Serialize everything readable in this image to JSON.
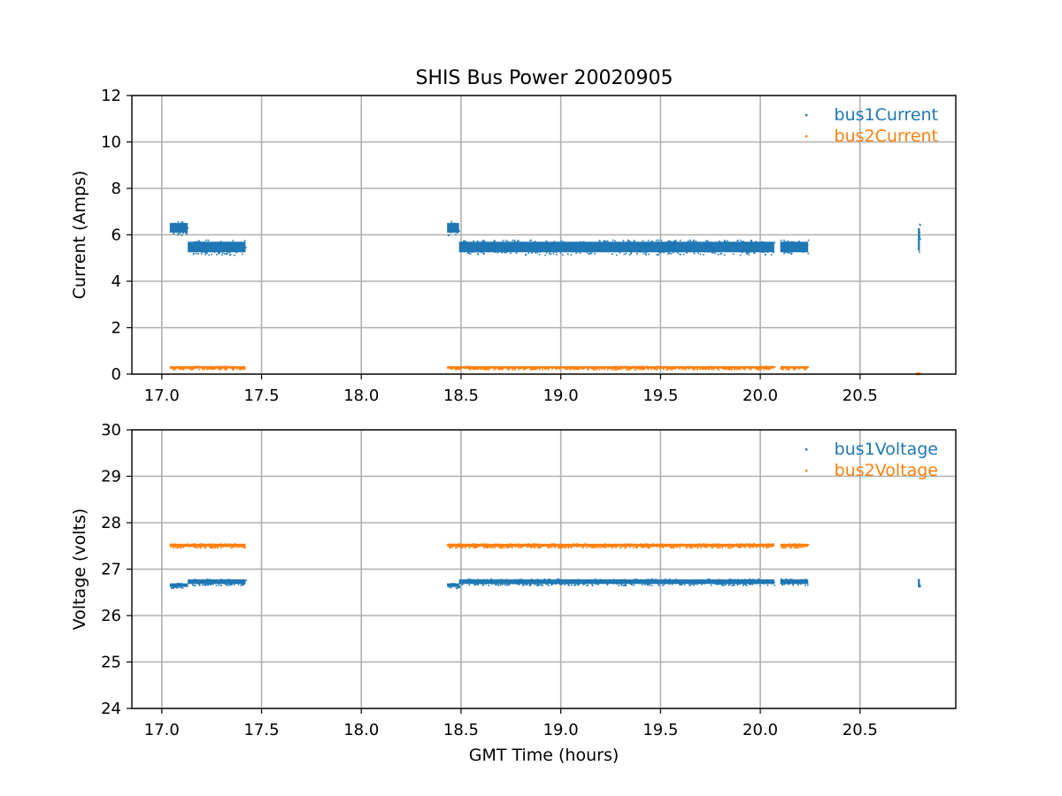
{
  "figure": {
    "title": "SHIS Bus Power 20020905"
  },
  "colors": {
    "series1": "#1f77b4",
    "series2": "#ff7f0e",
    "grid": "#b0b0b0",
    "axes": "#000000"
  },
  "chart_data": [
    {
      "type": "scatter",
      "title": "SHIS Bus Power 20020905",
      "xlabel": "",
      "ylabel": "Current (Amps)",
      "xlim": [
        16.85,
        20.98
      ],
      "ylim": [
        0,
        12
      ],
      "x_ticks": [
        17.0,
        17.5,
        18.0,
        18.5,
        19.0,
        19.5,
        20.0,
        20.5
      ],
      "x_tick_labels": [
        "17.0",
        "17.5",
        "18.0",
        "18.5",
        "19.0",
        "19.5",
        "20.0",
        "20.5"
      ],
      "y_ticks": [
        0,
        2,
        4,
        6,
        8,
        10,
        12
      ],
      "y_tick_labels": [
        "0",
        "2",
        "4",
        "6",
        "8",
        "10",
        "12"
      ],
      "grid": true,
      "legend": "top-right",
      "series": [
        {
          "name": "bus1Current",
          "color": "#1f77b4",
          "segments": [
            {
              "x": [
                17.04,
                17.13
              ],
              "y": [
                6.0,
                6.6
              ]
            },
            {
              "x": [
                17.13,
                17.42
              ],
              "y": [
                5.15,
                5.8
              ]
            },
            {
              "x": [
                18.43,
                18.49
              ],
              "y": [
                6.0,
                6.6
              ]
            },
            {
              "x": [
                18.49,
                20.07
              ],
              "y": [
                5.15,
                5.8
              ]
            },
            {
              "x": [
                20.1,
                20.24
              ],
              "y": [
                5.15,
                5.8
              ]
            },
            {
              "x": [
                20.79,
                20.8
              ],
              "y": [
                5.1,
                6.5
              ]
            }
          ]
        },
        {
          "name": "bus2Current",
          "color": "#ff7f0e",
          "segments": [
            {
              "x": [
                17.04,
                17.42
              ],
              "y": [
                0.22,
                0.36
              ]
            },
            {
              "x": [
                18.43,
                20.07
              ],
              "y": [
                0.22,
                0.36
              ]
            },
            {
              "x": [
                20.1,
                20.24
              ],
              "y": [
                0.22,
                0.36
              ]
            },
            {
              "x": [
                20.78,
                20.8
              ],
              "y": [
                0.0,
                0.08
              ]
            }
          ]
        }
      ]
    },
    {
      "type": "scatter",
      "title": "",
      "xlabel": "GMT Time (hours)",
      "ylabel": "Voltage (volts)",
      "xlim": [
        16.85,
        20.98
      ],
      "ylim": [
        24,
        30
      ],
      "x_ticks": [
        17.0,
        17.5,
        18.0,
        18.5,
        19.0,
        19.5,
        20.0,
        20.5
      ],
      "x_tick_labels": [
        "17.0",
        "17.5",
        "18.0",
        "18.5",
        "19.0",
        "19.5",
        "20.0",
        "20.5"
      ],
      "y_ticks": [
        24,
        25,
        26,
        27,
        28,
        29,
        30
      ],
      "y_tick_labels": [
        "24",
        "25",
        "26",
        "27",
        "28",
        "29",
        "30"
      ],
      "grid": true,
      "legend": "top-right",
      "series": [
        {
          "name": "bus1Voltage",
          "color": "#1f77b4",
          "segments": [
            {
              "x": [
                17.04,
                17.13
              ],
              "y": [
                26.6,
                26.71
              ]
            },
            {
              "x": [
                17.13,
                17.42
              ],
              "y": [
                26.66,
                26.8
              ]
            },
            {
              "x": [
                18.43,
                18.49
              ],
              "y": [
                26.6,
                26.71
              ]
            },
            {
              "x": [
                18.49,
                20.07
              ],
              "y": [
                26.66,
                26.8
              ]
            },
            {
              "x": [
                20.1,
                20.24
              ],
              "y": [
                26.66,
                26.8
              ]
            },
            {
              "x": [
                20.79,
                20.8
              ],
              "y": [
                26.6,
                26.82
              ]
            }
          ]
        },
        {
          "name": "bus2Voltage",
          "color": "#ff7f0e",
          "segments": [
            {
              "x": [
                17.04,
                17.42
              ],
              "y": [
                27.47,
                27.56
              ]
            },
            {
              "x": [
                18.43,
                20.07
              ],
              "y": [
                27.47,
                27.56
              ]
            },
            {
              "x": [
                20.1,
                20.24
              ],
              "y": [
                27.47,
                27.56
              ]
            }
          ]
        }
      ]
    }
  ]
}
